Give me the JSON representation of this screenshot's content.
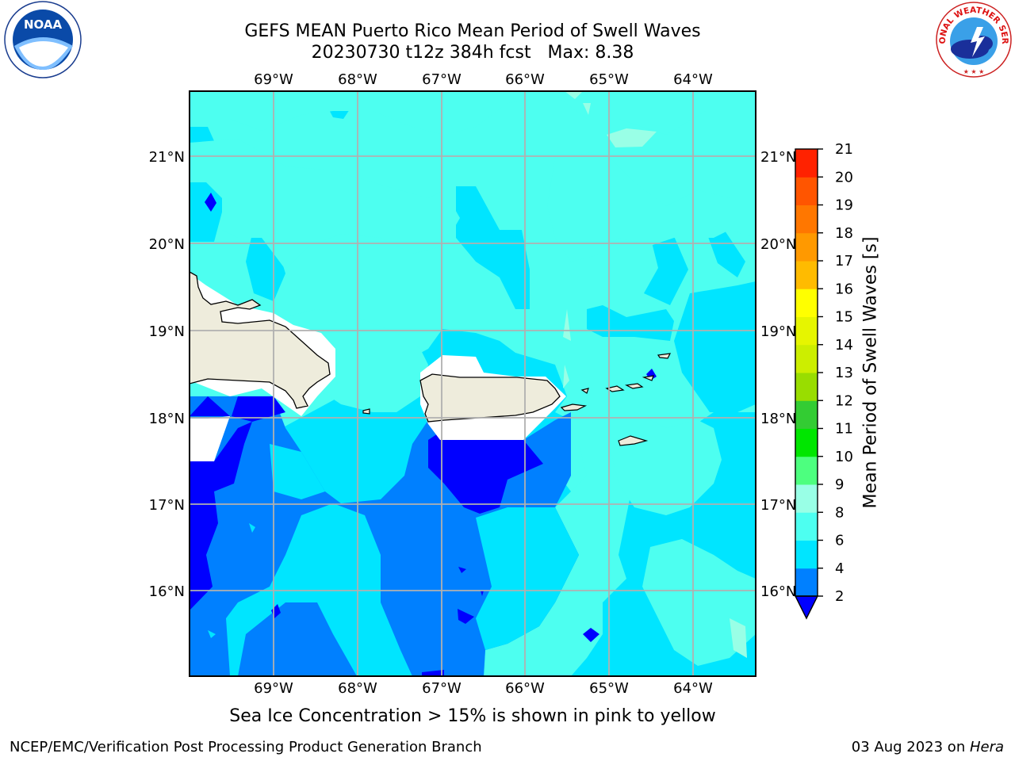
{
  "title": {
    "line1": "GEFS MEAN Puerto Rico Mean Period of Swell Waves",
    "line2": "20230730 t12z 384h fcst   Max: 8.38"
  },
  "map": {
    "lon_range": [
      -70,
      -63.25
    ],
    "lat_range": [
      15,
      21.75
    ],
    "lon_ticks": [
      "69°W",
      "68°W",
      "67°W",
      "66°W",
      "65°W",
      "64°W"
    ],
    "lat_ticks": [
      "21°N",
      "20°N",
      "19°N",
      "18°N",
      "17°N",
      "16°N"
    ],
    "gridlines": true,
    "colors": {
      "land": "#eeecdc",
      "frame": "#000000",
      "grid": "#b0b0b0"
    }
  },
  "colorbar": {
    "label": "Mean Period of Swell Waves [s]",
    "tick_labels": [
      "2",
      "4",
      "6",
      "8",
      "9",
      "10",
      "11",
      "12",
      "13",
      "14",
      "15",
      "16",
      "17",
      "18",
      "19",
      "20",
      "21"
    ],
    "bins": [
      {
        "from": 2,
        "to": 4,
        "color": "#0080ff"
      },
      {
        "from": 4,
        "to": 6,
        "color": "#00e5ff"
      },
      {
        "from": 6,
        "to": 8,
        "color": "#4dfff0"
      },
      {
        "from": 8,
        "to": 9,
        "color": "#99ffe6"
      },
      {
        "from": 9,
        "to": 10,
        "color": "#4dff7f"
      },
      {
        "from": 10,
        "to": 11,
        "color": "#00e600"
      },
      {
        "from": 11,
        "to": 12,
        "color": "#33cc33"
      },
      {
        "from": 12,
        "to": 13,
        "color": "#99dd00"
      },
      {
        "from": 13,
        "to": 14,
        "color": "#ccee00"
      },
      {
        "from": 14,
        "to": 15,
        "color": "#e6f500"
      },
      {
        "from": 15,
        "to": 16,
        "color": "#ffff00"
      },
      {
        "from": 16,
        "to": 17,
        "color": "#ffbb00"
      },
      {
        "from": 17,
        "to": 18,
        "color": "#ff9900"
      },
      {
        "from": 18,
        "to": 19,
        "color": "#ff7700"
      },
      {
        "from": 19,
        "to": 20,
        "color": "#ff5500"
      },
      {
        "from": 20,
        "to": 21,
        "color": "#ff2200"
      }
    ],
    "under_color": "#0000ff",
    "top_color": "#ff0000"
  },
  "footnote": "Sea Ice Concentration > 15% is shown in pink to yellow",
  "credit_left": "NCEP/EMC/Verification Post Processing Product Generation Branch",
  "credit_right": {
    "prefix": "03 Aug 2023 on ",
    "host": "Hera"
  },
  "logos": {
    "noaa_text": "NOAA",
    "nws_text": "NATIONAL WEATHER SERVICE"
  }
}
